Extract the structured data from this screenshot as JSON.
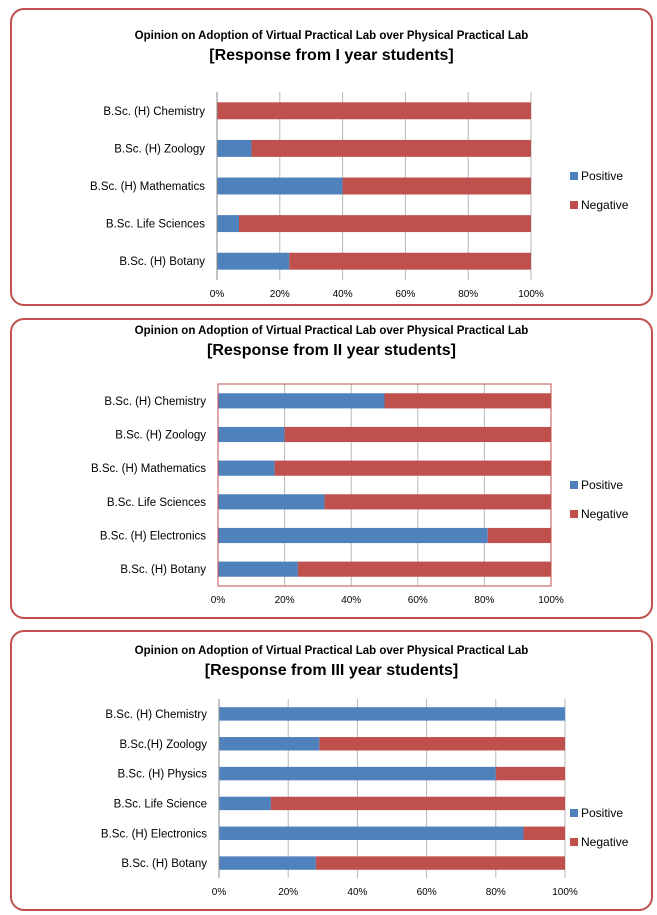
{
  "colors": {
    "positive": "#4f81bd",
    "negative": "#c0504d",
    "border": "#c0504d",
    "grid": "#b7b7b7"
  },
  "chart_data": [
    {
      "type": "bar",
      "orientation": "horizontal",
      "stacked": "percent",
      "title": "Opinion on  Adoption of Virtual Practical Lab  over Physical Practical Lab",
      "subtitle": "[Response from I year students]",
      "categories": [
        "B.Sc. (H) Chemistry",
        "B.Sc. (H) Zoology",
        "B.Sc. (H) Mathematics",
        "B.Sc. Life Sciences",
        "B.Sc. (H) Botany"
      ],
      "series": [
        {
          "name": "Positive",
          "values": [
            0,
            11,
            40,
            7,
            23
          ]
        },
        {
          "name": "Negative",
          "values": [
            100,
            89,
            60,
            93,
            77
          ]
        }
      ],
      "x_ticks": [
        "0%",
        "20%",
        "40%",
        "60%",
        "80%",
        "100%"
      ],
      "xlim": [
        0,
        100
      ],
      "grid": true,
      "legend": "right"
    },
    {
      "type": "bar",
      "orientation": "horizontal",
      "stacked": "percent",
      "title": "Opinion on  Adoption of Virtual Practical Lab  over Physical Practical Lab",
      "subtitle": "[Response from II year students]",
      "categories": [
        "B.Sc. (H) Chemistry",
        "B.Sc. (H) Zoology",
        "B.Sc. (H) Mathematics",
        "B.Sc. Life Sciences",
        "B.Sc. (H) Electronics",
        "B.Sc. (H) Botany"
      ],
      "series": [
        {
          "name": "Positive",
          "values": [
            50,
            20,
            17,
            32,
            81,
            24
          ]
        },
        {
          "name": "Negative",
          "values": [
            50,
            80,
            83,
            68,
            19,
            76
          ]
        }
      ],
      "x_ticks": [
        "0%",
        "20%",
        "40%",
        "60%",
        "80%",
        "100%"
      ],
      "xlim": [
        0,
        100
      ],
      "grid": true,
      "legend": "right"
    },
    {
      "type": "bar",
      "orientation": "horizontal",
      "stacked": "percent",
      "title": "Opinion on  Adoption of Virtual Practical Lab over Physical Practical Lab",
      "subtitle": "[Response from III year students]",
      "categories": [
        "B.Sc. (H) Chemistry",
        "B.Sc.(H) Zoology",
        "B.Sc. (H) Physics",
        "B.Sc. Life Science",
        "B.Sc. (H) Electronics",
        "B.Sc. (H) Botany"
      ],
      "series": [
        {
          "name": "Positive",
          "values": [
            100,
            29,
            80,
            15,
            88,
            28
          ]
        },
        {
          "name": "Negative",
          "values": [
            0,
            71,
            20,
            85,
            12,
            72
          ]
        }
      ],
      "x_ticks": [
        "0%",
        "20%",
        "40%",
        "60%",
        "80%",
        "100%"
      ],
      "xlim": [
        0,
        100
      ],
      "grid": true,
      "legend": "right"
    }
  ]
}
